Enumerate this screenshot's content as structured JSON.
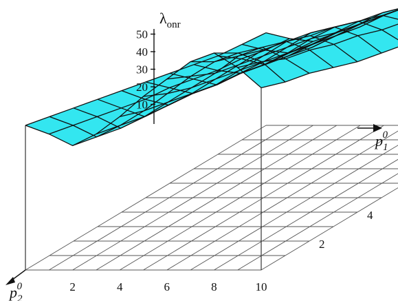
{
  "chart_data": {
    "type": "surface",
    "title": "",
    "x_axis": {
      "label_base": "p",
      "label_sub": "1",
      "label_sup": "0",
      "ticks": [
        2,
        4,
        6,
        8
      ],
      "range": [
        0,
        10
      ]
    },
    "y_axis": {
      "label_base": "p",
      "label_sub": "2",
      "label_sup": "0",
      "ticks": [
        2,
        4,
        6,
        8,
        10
      ],
      "range": [
        0,
        10
      ]
    },
    "z_axis": {
      "label_base": "λ",
      "label_sub": "onr",
      "ticks": [
        10,
        20,
        30,
        40,
        50
      ],
      "range": [
        0,
        50
      ]
    },
    "colors": {
      "surface": "#33e6f0",
      "mesh": "#101010",
      "grid": "#555555"
    },
    "z_values": [
      [
        27,
        24,
        20,
        24,
        30,
        37,
        43,
        49,
        52,
        47,
        40
      ],
      [
        25,
        22,
        18,
        22,
        27,
        33,
        39,
        44,
        47,
        44,
        37
      ],
      [
        23,
        20,
        16,
        20,
        25,
        30,
        35,
        41,
        44,
        40,
        35
      ],
      [
        21,
        18,
        15,
        19,
        23,
        28,
        33,
        38,
        41,
        38,
        32
      ],
      [
        19,
        16,
        14,
        18,
        21,
        26,
        31,
        36,
        38,
        35,
        29
      ],
      [
        17,
        15,
        13,
        16,
        20,
        24,
        29,
        34,
        36,
        33,
        27
      ],
      [
        15,
        13,
        11,
        15,
        18,
        22,
        27,
        31,
        33,
        30,
        25
      ],
      [
        13,
        11,
        10,
        13,
        16,
        20,
        24,
        28,
        30,
        28,
        23
      ],
      [
        11,
        10,
        8,
        11,
        14,
        18,
        22,
        26,
        28,
        25,
        21
      ],
      [
        10,
        8,
        7,
        10,
        13,
        16,
        20,
        23,
        25,
        23,
        19
      ],
      [
        9,
        7,
        6,
        9,
        12,
        15,
        18,
        21,
        23,
        21,
        18
      ]
    ]
  }
}
